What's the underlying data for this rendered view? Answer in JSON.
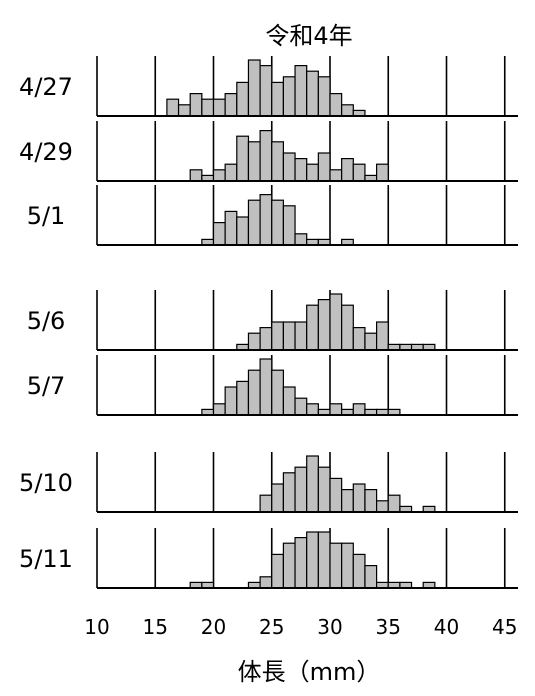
{
  "chart_data": {
    "type": "bar",
    "title": "令和4年",
    "xlabel": "体長（mm）",
    "ylabel": "",
    "xlim": [
      10,
      45
    ],
    "xticks": [
      "10",
      "15",
      "20",
      "25",
      "30",
      "35",
      "40",
      "45"
    ],
    "bin_width_mm": 1,
    "series": [
      {
        "name": "4/27",
        "x": [
          16,
          17,
          18,
          19,
          20,
          21,
          22,
          23,
          24,
          25,
          26,
          27,
          28,
          29,
          30,
          31,
          32,
          33,
          34
        ],
        "values": [
          3,
          2,
          4,
          3,
          3,
          4,
          6,
          10,
          9,
          6,
          7,
          9,
          8,
          7,
          4,
          2,
          1,
          0,
          0
        ]
      },
      {
        "name": "4/29",
        "x": [
          18,
          19,
          20,
          21,
          22,
          23,
          24,
          25,
          26,
          27,
          28,
          29,
          30,
          31,
          32,
          33,
          34
        ],
        "values": [
          2,
          1,
          2,
          3,
          8,
          7,
          9,
          7,
          5,
          4,
          3,
          5,
          2,
          4,
          3,
          1,
          3
        ]
      },
      {
        "name": "5/1",
        "x": [
          18,
          19,
          20,
          21,
          22,
          23,
          24,
          25,
          26,
          27,
          28,
          29,
          30,
          31
        ],
        "values": [
          0,
          1,
          4,
          6,
          5,
          8,
          9,
          8,
          7,
          2,
          1,
          1,
          0,
          1
        ]
      },
      {
        "name": "5/6",
        "x": [
          18,
          19,
          20,
          21,
          22,
          23,
          24,
          25,
          26,
          27,
          28,
          29,
          30,
          31,
          32,
          33,
          34,
          35,
          36,
          37,
          38
        ],
        "values": [
          0,
          0,
          0,
          0,
          1,
          3,
          4,
          5,
          5,
          5,
          8,
          9,
          10,
          8,
          4,
          3,
          5,
          1,
          1,
          1,
          1
        ]
      },
      {
        "name": "5/7",
        "x": [
          16,
          17,
          18,
          19,
          20,
          21,
          22,
          23,
          24,
          25,
          26,
          27,
          28,
          29,
          30,
          31,
          32,
          33,
          34,
          35
        ],
        "values": [
          0,
          0,
          0,
          1,
          2,
          5,
          6,
          8,
          10,
          8,
          5,
          3,
          2,
          1,
          2,
          1,
          2,
          1,
          1,
          1
        ]
      },
      {
        "name": "5/10",
        "x": [
          22,
          23,
          24,
          25,
          26,
          27,
          28,
          29,
          30,
          31,
          32,
          33,
          34,
          35,
          36,
          37,
          38,
          39
        ],
        "values": [
          0,
          0,
          3,
          5,
          7,
          8,
          10,
          8,
          6,
          4,
          5,
          4,
          2,
          3,
          1,
          0,
          1,
          0
        ]
      },
      {
        "name": "5/11",
        "x": [
          17,
          18,
          19,
          20,
          21,
          22,
          23,
          24,
          25,
          26,
          27,
          28,
          29,
          30,
          31,
          32,
          33,
          34,
          35,
          36,
          37,
          38
        ],
        "values": [
          0,
          1,
          1,
          0,
          0,
          0,
          1,
          2,
          6,
          8,
          9,
          10,
          10,
          8,
          8,
          6,
          4,
          1,
          1,
          1,
          0,
          1
        ]
      }
    ],
    "grid": true,
    "legend": "none"
  }
}
